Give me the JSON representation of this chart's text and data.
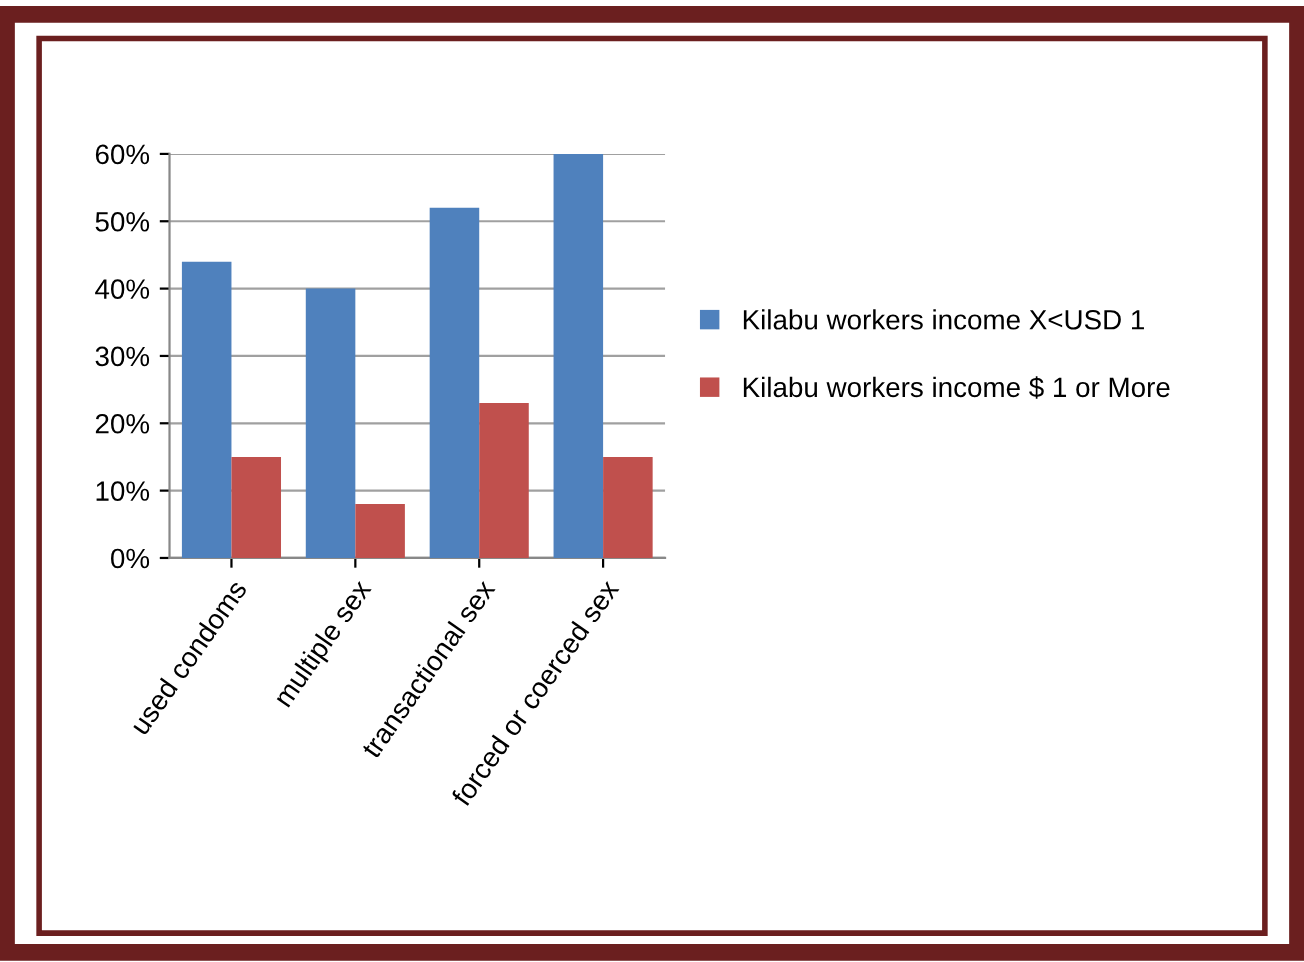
{
  "chart_data": {
    "type": "bar",
    "categories": [
      "used condoms",
      "multiple sex",
      "transactional sex",
      "forced or coerced sex"
    ],
    "series": [
      {
        "name": "Kilabu workers income X<USD 1",
        "color": "#4f81bd",
        "values": [
          44,
          40,
          52,
          60
        ]
      },
      {
        "name": "Kilabu workers income $ 1 or More",
        "color": "#c0504d",
        "values": [
          15,
          8,
          23,
          15
        ]
      }
    ],
    "ylim": [
      0,
      60
    ],
    "yticks": [
      {
        "value": 0,
        "label": "0%"
      },
      {
        "value": 10,
        "label": "10%"
      },
      {
        "value": 20,
        "label": "20%"
      },
      {
        "value": 30,
        "label": "30%"
      },
      {
        "value": 40,
        "label": "40%"
      },
      {
        "value": 50,
        "label": "50%"
      },
      {
        "value": 60,
        "label": "60%"
      }
    ],
    "grid": "y",
    "legend": "right"
  }
}
